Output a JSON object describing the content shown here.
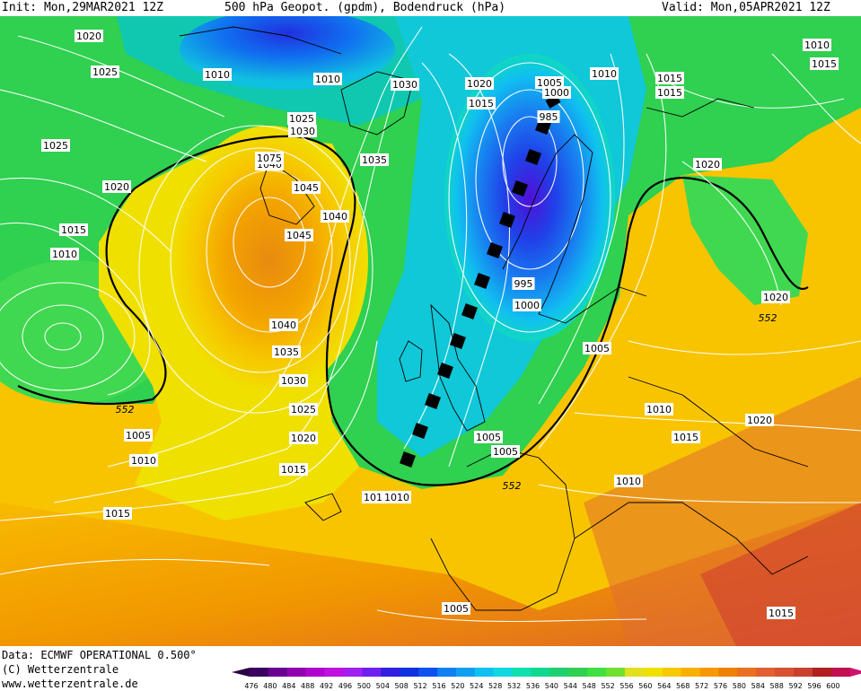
{
  "header": {
    "init": "Init: Mon,29MAR2021 12Z",
    "title": "500 hPa Geopot. (gpdm), Bodendruck (hPa)",
    "valid": "Valid: Mon,05APR2021 12Z"
  },
  "footer": {
    "data_source": "Data: ECMWF OPERATIONAL 0.500°",
    "copyright": "(C) Wetterzentrale",
    "website": "www.wetterzentrale.de"
  },
  "legend": {
    "values": [
      "476",
      "480",
      "484",
      "488",
      "492",
      "496",
      "500",
      "504",
      "508",
      "512",
      "516",
      "520",
      "524",
      "528",
      "532",
      "536",
      "540",
      "544",
      "548",
      "552",
      "556",
      "560",
      "564",
      "568",
      "572",
      "576",
      "580",
      "584",
      "588",
      "592",
      "596",
      "600"
    ],
    "colors": [
      "#3a0060",
      "#6a0090",
      "#9000b0",
      "#b000d0",
      "#c010e0",
      "#a020f0",
      "#7020f0",
      "#3020e0",
      "#1030e0",
      "#1050f0",
      "#1080f0",
      "#10a0f0",
      "#10c0f0",
      "#10d8e0",
      "#10e0b0",
      "#10d890",
      "#20d070",
      "#30d050",
      "#40e040",
      "#70e030",
      "#e0e020",
      "#f0e000",
      "#f8c800",
      "#f8b000",
      "#f89800",
      "#f08000",
      "#e87020",
      "#e06030",
      "#d85030",
      "#c84030",
      "#b02020",
      "#c01050"
    ]
  },
  "pressure_labels": [
    "1020",
    "1025",
    "1025",
    "1020",
    "1015",
    "1010",
    "1010",
    "1015",
    "1020",
    "1030",
    "1025",
    "1030",
    "1035",
    "1040",
    "1045",
    "1040",
    "1045",
    "1040",
    "1035",
    "1030",
    "1025",
    "1020",
    "1015",
    "1010",
    "1005",
    "1010",
    "1015",
    "1020",
    "1015",
    "1005",
    "1000",
    "985",
    "995",
    "1000",
    "1005",
    "1010",
    "1015",
    "1010",
    "1015",
    "1020",
    "1020",
    "1015",
    "1010",
    "1005",
    "1005",
    "1005",
    "1010",
    "1015",
    "1010",
    "1005",
    "1015",
    "1010",
    "1015",
    "1020",
    "1010",
    "1075",
    "1015"
  ],
  "height_labels": [
    "552",
    "552",
    "552"
  ],
  "map_features": {
    "high_centre": "Anticyclone west of British Isles",
    "low_centre": "Low over Scandinavia",
    "trough_marker": "dashed trough line"
  }
}
